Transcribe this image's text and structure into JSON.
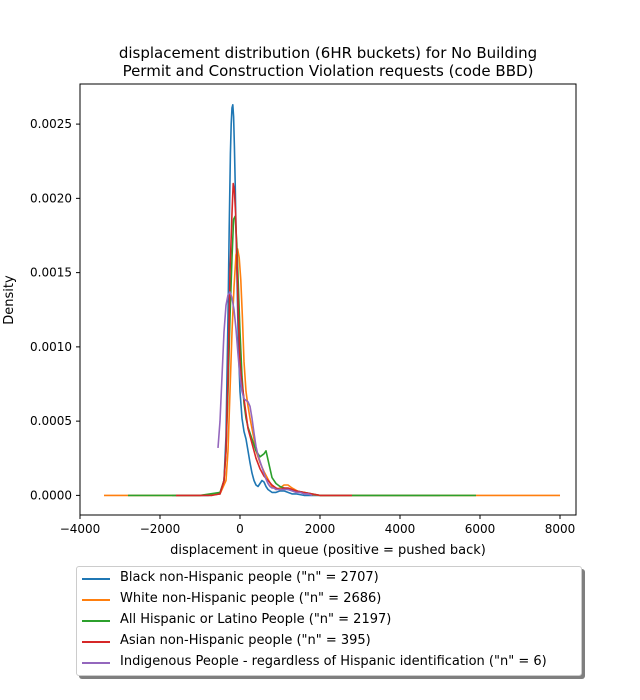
{
  "chart_data": {
    "type": "line",
    "title": "displacement distribution (6HR buckets) for No Building\nPermit and Construction Violation requests (code BBD)",
    "title_lines": [
      "displacement distribution (6HR buckets) for No Building",
      "Permit and Construction Violation requests (code BBD)"
    ],
    "xlabel": "displacement in queue (positive = pushed back)",
    "ylabel": "Density",
    "xlim": [
      -4000,
      8400
    ],
    "ylim": [
      -0.000132,
      0.00277
    ],
    "xticks": [
      -4000,
      -2000,
      0,
      2000,
      4000,
      6000,
      8000
    ],
    "xtick_labels": [
      "−4000",
      "−2000",
      "0",
      "2000",
      "4000",
      "6000",
      "8000"
    ],
    "yticks": [
      0.0,
      0.0005,
      0.001,
      0.0015,
      0.002,
      0.0025
    ],
    "ytick_labels": [
      "0.0000",
      "0.0005",
      "0.0010",
      "0.0015",
      "0.0020",
      "0.0025"
    ],
    "grid": false,
    "legend_position": "below",
    "series": [
      {
        "name": "Black non-Hispanic people (\"n\" = 2707)",
        "color": "#1f77b4",
        "x": [
          -1700,
          -800,
          -500,
          -400,
          -350,
          -300,
          -270,
          -240,
          -220,
          -200,
          -180,
          -160,
          -140,
          -120,
          -100,
          -70,
          -40,
          0,
          50,
          100,
          150,
          200,
          250,
          300,
          350,
          400,
          450,
          500,
          550,
          600,
          650,
          700,
          800,
          900,
          1000,
          1100,
          1200,
          1300,
          1400,
          1600,
          1800,
          2000,
          2500,
          3000,
          4000,
          5000
        ],
        "y": [
          0,
          0,
          1e-05,
          0.0001,
          0.0004,
          0.0012,
          0.0018,
          0.0023,
          0.0025,
          0.00261,
          0.00263,
          0.00255,
          0.00235,
          0.0021,
          0.0018,
          0.0014,
          0.001,
          0.0007,
          0.00052,
          0.00043,
          0.00038,
          0.0003,
          0.00022,
          0.00015,
          0.0001,
          7e-05,
          6e-05,
          8e-05,
          0.0001,
          9e-05,
          6e-05,
          4e-05,
          2e-05,
          2e-05,
          3e-05,
          3e-05,
          2e-05,
          1e-05,
          1e-05,
          0,
          0,
          0,
          0,
          0,
          0,
          0
        ]
      },
      {
        "name": "White non-Hispanic people (\"n\" = 2686)",
        "color": "#ff7f0e",
        "x": [
          -3400,
          -1000,
          -500,
          -350,
          -300,
          -250,
          -200,
          -150,
          -100,
          -60,
          -20,
          20,
          60,
          100,
          150,
          200,
          250,
          300,
          350,
          400,
          500,
          600,
          700,
          800,
          900,
          1000,
          1100,
          1200,
          1300,
          1500,
          1700,
          2000,
          3000,
          4000,
          5000,
          6000,
          7000,
          8000
        ],
        "y": [
          0,
          0,
          1e-05,
          0.0001,
          0.0003,
          0.0007,
          0.0011,
          0.0014,
          0.00162,
          0.00166,
          0.0016,
          0.00145,
          0.0012,
          0.0009,
          0.0007,
          0.0006,
          0.00052,
          0.00045,
          0.00038,
          0.0003,
          0.00022,
          0.00016,
          0.00011,
          6e-05,
          4e-05,
          5e-05,
          7e-05,
          7e-05,
          5e-05,
          2e-05,
          1e-05,
          0,
          0,
          0,
          0,
          0,
          0,
          0
        ]
      },
      {
        "name": "All Hispanic or Latino People (\"n\" = 2197)",
        "color": "#2ca02c",
        "x": [
          -2800,
          -1000,
          -500,
          -400,
          -350,
          -300,
          -250,
          -200,
          -160,
          -120,
          -80,
          -40,
          0,
          50,
          100,
          150,
          200,
          300,
          400,
          500,
          600,
          650,
          700,
          800,
          900,
          1000,
          1100,
          1200,
          1400,
          1600,
          1800,
          2000,
          3000,
          4000,
          5000,
          5900
        ],
        "y": [
          0,
          0,
          2e-05,
          0.0001,
          0.0003,
          0.0007,
          0.0012,
          0.0016,
          0.00186,
          0.00188,
          0.0017,
          0.0014,
          0.0011,
          0.0008,
          0.00062,
          0.00052,
          0.00046,
          0.00038,
          0.0003,
          0.00026,
          0.00028,
          0.0003,
          0.00024,
          0.00012,
          8e-05,
          6e-05,
          5e-05,
          4e-05,
          3e-05,
          2e-05,
          1e-05,
          0,
          0,
          0,
          0,
          0
        ]
      },
      {
        "name": "Asian non-Hispanic people (\"n\" = 395)",
        "color": "#d62728",
        "x": [
          -1600,
          -700,
          -500,
          -400,
          -350,
          -300,
          -250,
          -200,
          -170,
          -140,
          -110,
          -80,
          -40,
          0,
          50,
          100,
          150,
          200,
          300,
          400,
          500,
          600,
          700,
          800,
          900,
          1000,
          1100,
          1200,
          1300,
          1400,
          1600,
          1800,
          2000,
          2400,
          2800
        ],
        "y": [
          0,
          0,
          1e-05,
          0.0001,
          0.0003,
          0.0008,
          0.0015,
          0.0019,
          0.0021,
          0.00205,
          0.0019,
          0.0016,
          0.0012,
          0.0009,
          0.00075,
          0.00065,
          0.00055,
          0.00045,
          0.00035,
          0.00025,
          0.00018,
          0.00013,
          0.0001,
          7e-05,
          5e-05,
          4e-05,
          5e-05,
          5e-05,
          4e-05,
          3e-05,
          2e-05,
          1e-05,
          0,
          0,
          0
        ]
      },
      {
        "name": "Indigenous People - regardless of Hispanic identification (\"n\" = 6)",
        "color": "#9467bd",
        "x": [
          -550,
          -500,
          -450,
          -400,
          -350,
          -300,
          -250,
          -200,
          -150,
          -100,
          -50,
          0,
          50,
          100,
          150,
          200,
          250,
          300,
          350,
          400,
          450,
          500,
          550,
          600,
          650,
          700,
          750,
          800,
          850,
          900,
          1000,
          1100,
          1200,
          1300,
          1400,
          1500,
          1600,
          1700,
          1800
        ],
        "y": [
          0.00032,
          0.0005,
          0.0008,
          0.0011,
          0.00128,
          0.00135,
          0.00137,
          0.00133,
          0.00125,
          0.00112,
          0.00095,
          0.0008,
          0.0007,
          0.00065,
          0.00064,
          0.00063,
          0.0006,
          0.00052,
          0.00042,
          0.00033,
          0.00027,
          0.00023,
          0.00019,
          0.00015,
          0.00011,
          8e-05,
          6e-05,
          5e-05,
          5e-05,
          4e-05,
          4e-05,
          4e-05,
          4e-05,
          3e-05,
          2e-05,
          2e-05,
          1e-05,
          1e-05,
          0
        ]
      }
    ]
  }
}
